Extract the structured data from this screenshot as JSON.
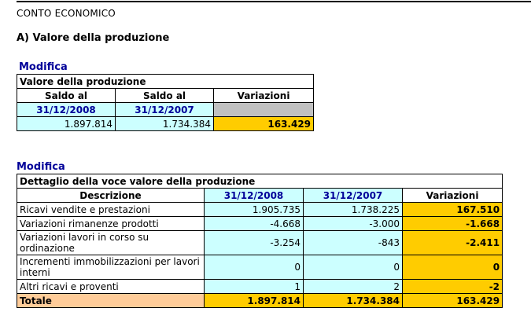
{
  "header": {
    "section_title": "CONTO ECONOMICO",
    "subtitle": "A) Valore della produzione"
  },
  "summary_table": {
    "modifica_label": "Modifica",
    "caption": "Valore della produzione",
    "col_labels": [
      "Saldo al",
      "Saldo al",
      "Variazioni"
    ],
    "dates": [
      "31/12/2008",
      "31/12/2007"
    ],
    "values": [
      "1.897.814",
      "1.734.384",
      "163.429"
    ]
  },
  "detail_table": {
    "modifica_label": "Modifica",
    "caption": "Dettaglio della voce valore della produzione",
    "columns": [
      "Descrizione",
      "31/12/2008",
      "31/12/2007",
      "Variazioni"
    ],
    "rows": [
      {
        "desc": "Ricavi vendite e prestazioni",
        "v2008": "1.905.735",
        "v2007": "1.738.225",
        "var": "167.510"
      },
      {
        "desc": "Variazioni rimanenze prodotti",
        "v2008": "-4.668",
        "v2007": "-3.000",
        "var": "-1.668"
      },
      {
        "desc": "Variazioni lavori in corso su ordinazione",
        "v2008": "-3.254",
        "v2007": "-843",
        "var": "-2.411"
      },
      {
        "desc": "Incrementi immobilizzazioni per lavori interni",
        "v2008": "0",
        "v2007": "0",
        "var": "0"
      },
      {
        "desc": "Altri ricavi e proventi",
        "v2008": "1",
        "v2007": "2",
        "var": "-2"
      }
    ],
    "total": {
      "label": "Totale",
      "v2008": "1.897.814",
      "v2007": "1.734.384",
      "var": "163.429"
    }
  },
  "colors": {
    "light_cyan": "#ccffff",
    "variation_orange": "#ffcc00",
    "total_peach": "#ffcc99",
    "link_blue": "#000099",
    "grey": "#c0c0c0"
  }
}
